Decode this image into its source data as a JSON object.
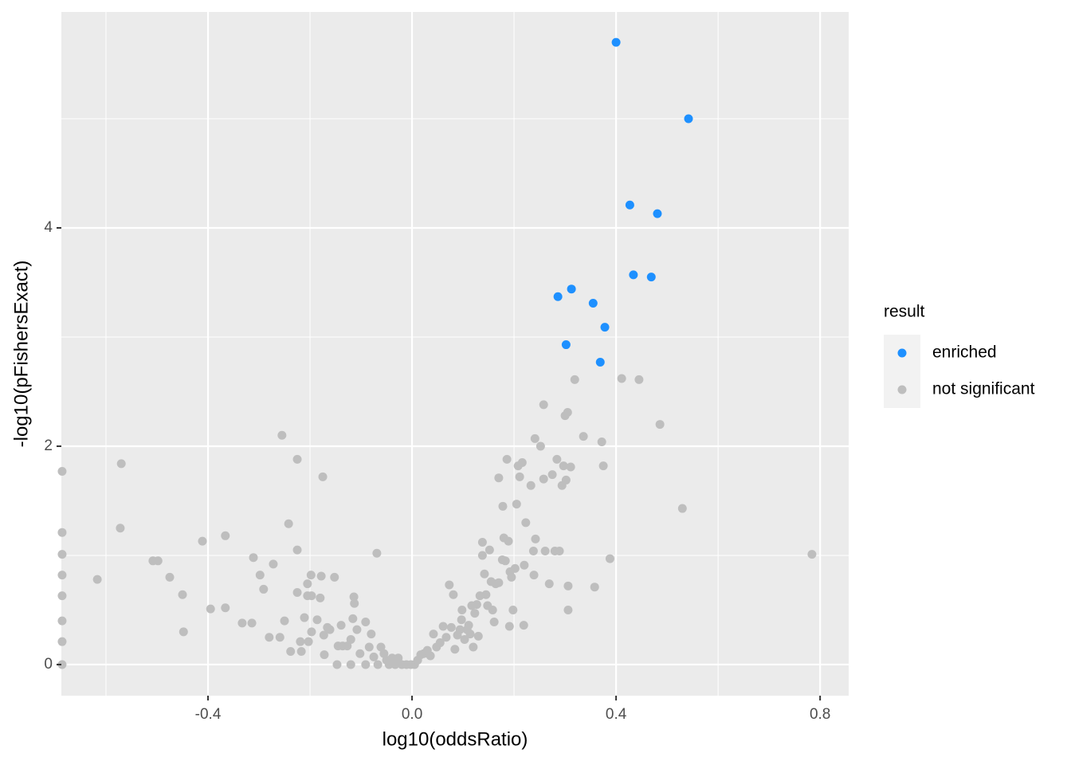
{
  "chart_data": {
    "type": "scatter",
    "x_label": "log10(oddsRatio)",
    "y_label": "-log10(pFishersExact)",
    "legend_title": "result",
    "xlim": [
      -0.6875,
      0.856
    ],
    "ylim": [
      -0.285,
      5.978
    ],
    "xticks": [
      -0.4,
      {
        "value": 0,
        "label": "0.0"
      },
      0.4,
      0.8
    ],
    "yticks": [
      0,
      2,
      4
    ],
    "x_minor_ticks": [
      -0.6,
      -0.2,
      0.2,
      0.6
    ],
    "y_minor_ticks": [
      1,
      3,
      5
    ],
    "grid": true,
    "legend": "right",
    "series": [
      {
        "name": "enriched",
        "color": "#1e90ff",
        "x": [
          0.4,
          0.542,
          0.427,
          0.481,
          0.434,
          0.469,
          0.3125,
          0.286,
          0.355,
          0.378,
          0.302,
          0.369
        ],
        "values": [
          5.7,
          5.0,
          4.21,
          4.13,
          3.57,
          3.55,
          3.44,
          3.37,
          3.31,
          3.09,
          2.93,
          2.77
        ]
      },
      {
        "name": "not significant",
        "color": "#bebebe",
        "x": [
          -0.686,
          -0.686,
          -0.686,
          -0.686,
          -0.686,
          -0.686,
          -0.686,
          -0.686,
          -0.57,
          -0.572,
          -0.617,
          -0.508,
          -0.498,
          -0.475,
          -0.45,
          -0.448,
          -0.411,
          -0.395,
          -0.366,
          -0.366,
          -0.333,
          -0.314,
          -0.311,
          -0.298,
          -0.291,
          -0.28,
          -0.272,
          -0.259,
          -0.255,
          -0.25,
          -0.242,
          -0.238,
          -0.225,
          -0.225,
          -0.225,
          -0.217,
          -0.219,
          -0.211,
          -0.203,
          -0.205,
          -0.205,
          -0.198,
          -0.197,
          -0.197,
          -0.186,
          -0.18,
          -0.178,
          -0.175,
          -0.173,
          -0.172,
          -0.166,
          -0.161,
          -0.152,
          -0.147,
          -0.145,
          -0.136,
          -0.127,
          -0.139,
          -0.12,
          -0.116,
          -0.114,
          -0.113,
          -0.12,
          -0.108,
          -0.102,
          -0.091,
          -0.091,
          -0.084,
          -0.08,
          -0.075,
          -0.069,
          -0.067,
          -0.061,
          -0.055,
          -0.05,
          -0.045,
          -0.039,
          -0.033,
          -0.027,
          -0.02,
          -0.011,
          -0.002,
          0.005,
          0.011,
          0.017,
          0.023,
          0.03,
          0.036,
          0.042,
          0.048,
          0.055,
          0.061,
          0.067,
          0.073,
          0.077,
          0.081,
          0.084,
          0.089,
          0.094,
          0.097,
          0.098,
          0.103,
          0.108,
          0.111,
          0.114,
          0.117,
          0.12,
          0.123,
          0.127,
          0.13,
          0.133,
          0.138,
          0.138,
          0.142,
          0.145,
          0.148,
          0.152,
          0.155,
          0.158,
          0.161,
          0.164,
          0.17,
          0.17,
          0.177,
          0.178,
          0.18,
          0.183,
          0.186,
          0.189,
          0.191,
          0.192,
          0.195,
          0.198,
          0.202,
          0.205,
          0.208,
          0.211,
          0.216,
          0.219,
          0.22,
          0.223,
          0.233,
          0.238,
          0.239,
          0.241,
          0.242,
          0.252,
          0.258,
          0.258,
          0.261,
          0.269,
          0.275,
          0.28,
          0.284,
          0.289,
          0.294,
          0.297,
          0.3,
          0.302,
          0.305,
          0.306,
          0.306,
          0.311,
          0.319,
          0.336,
          0.358,
          0.372,
          0.375,
          0.388,
          0.411,
          0.445,
          0.486,
          0.53,
          0.784
        ],
        "values": [
          1.77,
          1.21,
          1.01,
          0.82,
          0.63,
          0.4,
          0.21,
          0,
          1.84,
          1.25,
          0.78,
          0.95,
          0.95,
          0.8,
          0.64,
          0.3,
          1.13,
          0.51,
          0.52,
          1.18,
          0.38,
          0.38,
          0.98,
          0.82,
          0.69,
          0.25,
          0.92,
          0.25,
          2.1,
          0.4,
          1.29,
          0.12,
          1.88,
          1.05,
          0.66,
          0.12,
          0.21,
          0.43,
          0.21,
          0.74,
          0.63,
          0.82,
          0.63,
          0.3,
          0.41,
          0.61,
          0.81,
          1.72,
          0.27,
          0.09,
          0.34,
          0.32,
          0.8,
          0,
          0.17,
          0.17,
          0.17,
          0.36,
          0,
          0.42,
          0.62,
          0.56,
          0.23,
          0.32,
          0.1,
          0.39,
          0,
          0.16,
          0.28,
          0.07,
          1.02,
          0,
          0.16,
          0.1,
          0.04,
          0,
          0.06,
          0,
          0.06,
          0,
          0,
          0,
          0,
          0.04,
          0.09,
          0.1,
          0.13,
          0.08,
          0.28,
          0.16,
          0.2,
          0.35,
          0.25,
          0.73,
          0.34,
          0.64,
          0.14,
          0.27,
          0.32,
          0.41,
          0.5,
          0.23,
          0.32,
          0.36,
          0.28,
          0.54,
          0.16,
          0.47,
          0.55,
          0.26,
          0.63,
          1.12,
          1.0,
          0.83,
          0.64,
          0.54,
          1.05,
          0.76,
          0.5,
          0.39,
          0.74,
          0.75,
          1.71,
          0.96,
          1.45,
          1.16,
          0.95,
          1.88,
          1.13,
          0.35,
          0.85,
          0.8,
          0.5,
          0.88,
          1.47,
          1.82,
          1.72,
          1.85,
          0.36,
          0.91,
          1.3,
          1.64,
          1.04,
          0.82,
          2.07,
          1.15,
          2.0,
          2.38,
          1.7,
          1.04,
          0.74,
          1.74,
          1.04,
          1.88,
          1.04,
          1.64,
          1.82,
          2.28,
          1.69,
          2.31,
          0.72,
          0.5,
          1.81,
          2.61,
          2.09,
          0.71,
          2.04,
          1.82,
          0.97,
          2.62,
          2.61,
          2.2,
          1.43,
          1.01
        ]
      }
    ]
  }
}
